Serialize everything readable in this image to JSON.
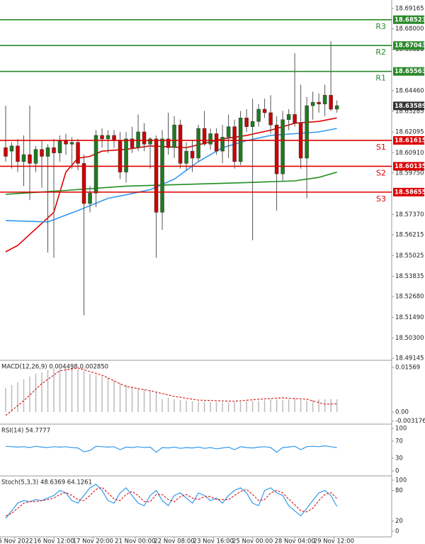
{
  "chart_data": [
    {
      "type": "candlestick",
      "ylim": [
        18.4907,
        18.6965
      ],
      "yticks": [
        18.69165,
        {
          "value": 18.68,
          "label": "18.68000"
        },
        {
          "value": 18.6682,
          "label": "18.66820"
        },
        {
          "value": 18.6446,
          "label": "18.64460"
        },
        18.63285,
        18.62095,
        {
          "value": 18.6091,
          "label": "18.60910"
        },
        {
          "value": 18.5975,
          "label": "18.59750"
        },
        {
          "value": 18.5737,
          "label": "18.57370"
        },
        18.56215,
        18.55025,
        18.53835,
        {
          "value": 18.5268,
          "label": "18.52680"
        },
        {
          "value": 18.5149,
          "label": "18.51490"
        },
        {
          "value": 18.503,
          "label": "18.50300"
        },
        18.49145
      ],
      "up_color": "#1e7b1e",
      "down_color": "#cc0000",
      "open": [
        18.612,
        18.61,
        18.613,
        18.604,
        18.608,
        18.603,
        18.611,
        18.607,
        18.612,
        18.609,
        18.616,
        18.614,
        18.615,
        18.603,
        18.58,
        18.586,
        18.619,
        18.617,
        18.619,
        18.616,
        18.598,
        18.617,
        18.612,
        18.621,
        18.614,
        18.617,
        18.575,
        18.617,
        18.612,
        18.625,
        18.603,
        18.61,
        18.606,
        18.623,
        18.614,
        18.62,
        18.61,
        18.618,
        18.624,
        18.604,
        18.629,
        18.624,
        18.627,
        18.634,
        18.632,
        18.625,
        18.597,
        18.628,
        18.631,
        18.626,
        18.606,
        18.636,
        18.638,
        18.637,
        18.642,
        18.634
      ],
      "high": [
        18.636,
        18.615,
        18.617,
        18.619,
        18.636,
        18.613,
        18.616,
        18.614,
        18.617,
        18.619,
        18.62,
        18.618,
        18.617,
        18.608,
        18.59,
        18.622,
        18.623,
        18.622,
        18.622,
        18.621,
        18.621,
        18.624,
        18.631,
        18.626,
        18.618,
        18.619,
        18.622,
        18.632,
        18.63,
        18.628,
        18.615,
        18.616,
        18.625,
        18.633,
        18.623,
        18.623,
        18.625,
        18.631,
        18.628,
        18.633,
        18.634,
        18.64,
        18.637,
        18.64,
        18.642,
        18.63,
        18.633,
        18.634,
        18.666,
        18.648,
        18.641,
        18.644,
        18.643,
        18.648,
        18.673,
        18.639
      ],
      "low": [
        18.604,
        18.6,
        18.598,
        18.59,
        18.582,
        18.598,
        18.589,
        18.552,
        18.549,
        18.604,
        18.608,
        18.6,
        18.599,
        18.516,
        18.575,
        18.578,
        18.612,
        18.609,
        18.612,
        18.594,
        18.592,
        18.609,
        18.61,
        18.61,
        18.6,
        18.549,
        18.565,
        18.608,
        18.606,
        18.6,
        18.599,
        18.598,
        18.604,
        18.613,
        18.611,
        18.608,
        18.603,
        18.606,
        18.6,
        18.602,
        18.621,
        18.559,
        18.624,
        18.629,
        18.62,
        18.576,
        18.593,
        18.622,
        18.624,
        18.6,
        18.583,
        18.628,
        18.632,
        18.63,
        18.633,
        18.632
      ],
      "close": [
        18.607,
        18.613,
        18.604,
        18.608,
        18.603,
        18.611,
        18.607,
        18.612,
        18.609,
        18.616,
        18.614,
        18.615,
        18.603,
        18.58,
        18.586,
        18.619,
        18.617,
        18.619,
        18.616,
        18.598,
        18.617,
        18.612,
        18.621,
        18.614,
        18.617,
        18.575,
        18.617,
        18.612,
        18.625,
        18.603,
        18.61,
        18.606,
        18.623,
        18.614,
        18.62,
        18.61,
        18.618,
        18.624,
        18.604,
        18.629,
        18.624,
        18.627,
        18.634,
        18.632,
        18.625,
        18.597,
        18.628,
        18.631,
        18.626,
        18.606,
        18.636,
        18.638,
        18.637,
        18.642,
        18.634,
        18.636
      ],
      "lines": [
        {
          "color": "#e00000",
          "x": [
            0,
            2,
            8,
            10,
            12,
            14,
            16,
            20,
            24,
            30,
            36,
            40,
            44,
            48,
            52,
            55
          ],
          "values": [
            18.5524,
            18.556,
            18.575,
            18.598,
            18.606,
            18.607,
            18.61,
            18.611,
            18.613,
            18.612,
            18.617,
            18.619,
            18.622,
            18.626,
            18.627,
            18.629
          ]
        },
        {
          "color": "#3399ee",
          "x": [
            0,
            7,
            12,
            17,
            20,
            24,
            28,
            32,
            36,
            40,
            44,
            48,
            52,
            55
          ],
          "values": [
            18.5703,
            18.5695,
            18.576,
            18.583,
            18.585,
            18.588,
            18.594,
            18.604,
            18.612,
            18.616,
            18.619,
            18.62,
            18.621,
            18.623
          ]
        },
        {
          "color": "#1f8f1f",
          "x": [
            0,
            10,
            20,
            30,
            40,
            48,
            52,
            55
          ],
          "values": [
            18.5853,
            18.5875,
            18.59,
            18.591,
            18.592,
            18.593,
            18.595,
            18.598
          ]
        }
      ],
      "levels": [
        {
          "name": "R3",
          "value": 18.68523,
          "color": "#2a8a2a"
        },
        {
          "name": "R2",
          "value": 18.67043,
          "color": "#2a8a2a"
        },
        {
          "name": "R1",
          "value": 18.65563,
          "color": "#2a8a2a"
        },
        {
          "name": "S1",
          "value": 18.61615,
          "color": "#dd0000"
        },
        {
          "name": "S2",
          "value": 18.60135,
          "color": "#dd0000"
        },
        {
          "name": "S3",
          "value": 18.58655,
          "color": "#dd0000"
        }
      ],
      "current": {
        "value": 18.63589,
        "color": "#333333"
      }
    },
    {
      "type": "indicator",
      "title": "MACD(12,26,9) 0.004498 0.002850",
      "ylim": [
        -0.00399,
        0.0177
      ],
      "yticks": [
        0.01569,
        {
          "value": 0,
          "label": "0.00"
        },
        -0.003176
      ],
      "series": [
        {
          "style": "bars",
          "color": "#bbbbbb",
          "values": [
            0.0085,
            0.0095,
            0.0105,
            0.0115,
            0.0125,
            0.0135,
            0.014,
            0.0148,
            0.0152,
            0.0155,
            0.0155,
            0.0153,
            0.015,
            0.0145,
            0.0135,
            0.013,
            0.0125,
            0.012,
            0.011,
            0.01,
            0.0095,
            0.009,
            0.0085,
            0.008,
            0.0075,
            0.007,
            0.0045,
            0.005,
            0.0045,
            0.0042,
            0.004,
            0.0038,
            0.0036,
            0.0036,
            0.0035,
            0.0035,
            0.0034,
            0.0034,
            0.0035,
            0.0036,
            0.0038,
            0.004,
            0.004,
            0.0042,
            0.0045,
            0.0045,
            0.0043,
            0.0045,
            0.0048,
            0.0042,
            0.004,
            0.0042,
            0.0044,
            0.0045,
            0.0046,
            0.0045
          ]
        },
        {
          "style": "dashed",
          "color": "#dd2222",
          "x": [
            0,
            3,
            6,
            9,
            12,
            16,
            20,
            24,
            28,
            32,
            38,
            42,
            46,
            50,
            53,
            55
          ],
          "values": [
            -0.0012,
            0.004,
            0.01,
            0.0145,
            0.0155,
            0.013,
            0.009,
            0.0075,
            0.0055,
            0.0042,
            0.0038,
            0.0045,
            0.005,
            0.0045,
            0.0028,
            0.0029
          ]
        }
      ]
    },
    {
      "type": "indicator",
      "title": "RSI(14) 54.7777",
      "ylim": [
        -10,
        106.7
      ],
      "yticks": [
        100,
        70,
        30,
        0
      ],
      "series": [
        {
          "style": "solid",
          "color": "#3399ee",
          "values": [
            58,
            57,
            56,
            57,
            55,
            58,
            56,
            55,
            57,
            56,
            57,
            55,
            54,
            45,
            48,
            58,
            57,
            56,
            57,
            50,
            56,
            55,
            57,
            55,
            56,
            44,
            55,
            54,
            56,
            53,
            55,
            54,
            56,
            53,
            55,
            52,
            54,
            56,
            50,
            57,
            55,
            54,
            56,
            57,
            55,
            44,
            55,
            56,
            58,
            50,
            57,
            58,
            57,
            59,
            57,
            54.7777
          ]
        }
      ]
    },
    {
      "type": "indicator",
      "title": "Stoch(5,3,3) 48.6369 64.1261",
      "ylim": [
        -11.1,
        105.6
      ],
      "yticks": [
        100,
        80,
        20,
        0
      ],
      "xlim": [
        -0.94,
        64.1
      ],
      "xticks": [
        {
          "value": 1.5,
          "label": "5 Nov 2022"
        },
        {
          "value": 8,
          "label": "16 Nov 12:00"
        },
        {
          "value": 14.5,
          "label": "17 Nov 20:00"
        },
        {
          "value": 21.5,
          "label": "21 Nov 00:00"
        },
        {
          "value": 28,
          "label": "22 Nov 08:00"
        },
        {
          "value": 34.5,
          "label": "23 Nov 16:00"
        },
        {
          "value": 41,
          "label": "25 Nov 00:00"
        },
        {
          "value": 48,
          "label": "28 Nov 04:00"
        },
        {
          "value": 54.5,
          "label": "29 Nov 12:00"
        }
      ],
      "series": [
        {
          "style": "solid",
          "color": "#3399ee",
          "values": [
            25,
            40,
            55,
            60,
            58,
            62,
            60,
            65,
            70,
            80,
            75,
            60,
            55,
            70,
            85,
            92,
            80,
            60,
            55,
            75,
            85,
            70,
            55,
            50,
            70,
            80,
            60,
            50,
            70,
            75,
            65,
            55,
            75,
            70,
            60,
            65,
            55,
            70,
            80,
            85,
            75,
            55,
            50,
            80,
            85,
            75,
            70,
            50,
            40,
            30,
            45,
            60,
            75,
            80,
            70,
            48.6369
          ]
        },
        {
          "style": "dashed",
          "color": "#dd2222",
          "values": [
            30,
            35,
            45,
            55,
            58,
            58,
            60,
            62,
            65,
            72,
            76,
            70,
            62,
            60,
            70,
            82,
            86,
            75,
            63,
            60,
            72,
            78,
            70,
            58,
            58,
            72,
            72,
            62,
            58,
            68,
            72,
            65,
            62,
            68,
            68,
            62,
            62,
            62,
            70,
            78,
            82,
            72,
            60,
            62,
            75,
            80,
            75,
            63,
            52,
            40,
            38,
            45,
            60,
            72,
            76,
            64.1261
          ]
        }
      ]
    }
  ]
}
